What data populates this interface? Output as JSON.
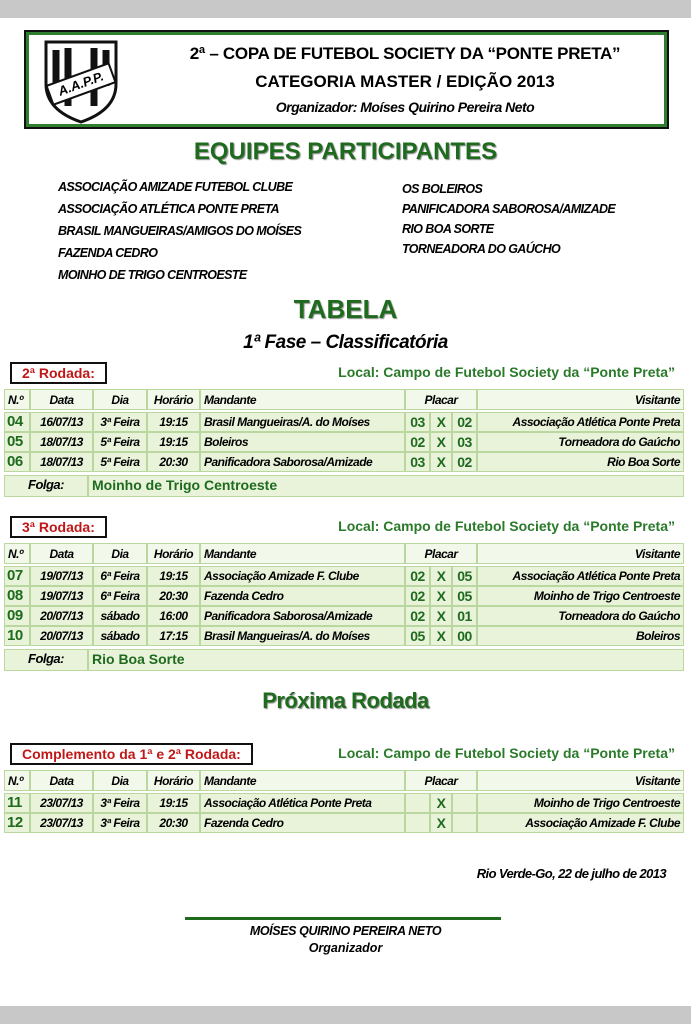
{
  "header": {
    "logo": "A.A.P.P.",
    "title": "2ª – COPA DE FUTEBOL SOCIETY DA “PONTE PRETA”",
    "subtitle": "CATEGORIA MASTER / EDIÇÃO 2013",
    "organizer": "Organizador: Moíses Quirino Pereira Neto"
  },
  "teams": {
    "title": "EQUIPES PARTICIPANTES",
    "left": [
      "ASSOCIAÇÃO AMIZADE FUTEBOL CLUBE",
      "ASSOCIAÇÃO ATLÉTICA PONTE PRETA",
      "BRASIL MANGUEIRAS/AMIGOS DO MOÍSES",
      "FAZENDA CEDRO",
      "MOINHO DE TRIGO CENTROESTE"
    ],
    "right": [
      "OS BOLEIROS",
      "PANIFICADORA SABOROSA/AMIZADE",
      "RIO BOA SORTE",
      "TORNEADORA DO GAÚCHO"
    ]
  },
  "table_title": "TABELA",
  "phase": "1ª Fase – Classificatória",
  "next_title": "Próxima Rodada",
  "rounds": [
    {
      "label": "2ª Rodada:",
      "location": "Local: Campo de Futebol Society da “Ponte Preta”",
      "headers": [
        "N.º",
        "Data",
        "Dia",
        "Horário",
        "Mandante",
        "Placar",
        "Visitante"
      ],
      "games": [
        {
          "no": "04",
          "date": "16/07/13",
          "day": "3ª Feira",
          "time": "19:15",
          "home": "Brasil Mangueiras/A. do Moíses",
          "score_home": "03",
          "vs": "X",
          "score_away": "02",
          "away": "Associação Atlética Ponte Preta"
        },
        {
          "no": "05",
          "date": "18/07/13",
          "day": "5ª Feira",
          "time": "19:15",
          "home": "Boleiros",
          "score_home": "02",
          "vs": "X",
          "score_away": "03",
          "away": "Torneadora do Gaúcho"
        },
        {
          "no": "06",
          "date": "18/07/13",
          "day": "5ª Feira",
          "time": "20:30",
          "home": "Panificadora Saborosa/Amizade",
          "score_home": "03",
          "vs": "X",
          "score_away": "02",
          "away": "Rio Boa Sorte"
        }
      ],
      "folga_label": "Folga:",
      "folga": "Moinho de Trigo Centroeste"
    },
    {
      "label": "3ª Rodada:",
      "location": "Local: Campo de Futebol Society da “Ponte Preta”",
      "headers": [
        "N.º",
        "Data",
        "Dia",
        "Horário",
        "Mandante",
        "Placar",
        "Visitante"
      ],
      "games": [
        {
          "no": "07",
          "date": "19/07/13",
          "day": "6ª Feira",
          "time": "19:15",
          "home": "Associação Amizade F. Clube",
          "score_home": "02",
          "vs": "X",
          "score_away": "05",
          "away": "Associação Atlética Ponte Preta"
        },
        {
          "no": "08",
          "date": "19/07/13",
          "day": "6ª Feira",
          "time": "20:30",
          "home": "Fazenda Cedro",
          "score_home": "02",
          "vs": "X",
          "score_away": "05",
          "away": "Moinho de Trigo Centroeste"
        },
        {
          "no": "09",
          "date": "20/07/13",
          "day": "sábado",
          "time": "16:00",
          "home": "Panificadora Saborosa/Amizade",
          "score_home": "02",
          "vs": "X",
          "score_away": "01",
          "away": "Torneadora do Gaúcho"
        },
        {
          "no": "10",
          "date": "20/07/13",
          "day": "sábado",
          "time": "17:15",
          "home": "Brasil Mangueiras/A. do Moíses",
          "score_home": "05",
          "vs": "X",
          "score_away": "00",
          "away": "Boleiros"
        }
      ],
      "folga_label": "Folga:",
      "folga": "Rio Boa Sorte"
    },
    {
      "label": "Complemento da 1ª e 2ª Rodada:",
      "location": "Local: Campo de Futebol Society da “Ponte Preta”",
      "headers": [
        "N.º",
        "Data",
        "Dia",
        "Horário",
        "Mandante",
        "Placar",
        "Visitante"
      ],
      "games": [
        {
          "no": "11",
          "date": "23/07/13",
          "day": "3ª Feira",
          "time": "19:15",
          "home": "Associação Atlética Ponte Preta",
          "vs": "X",
          "away": "Moinho de Trigo Centroeste"
        },
        {
          "no": "12",
          "date": "23/07/13",
          "day": "3ª Feira",
          "time": "20:30",
          "home": "Fazenda Cedro",
          "vs": "X",
          "away": "Associação Amizade F. Clube"
        }
      ]
    }
  ],
  "footer": {
    "place_date": "Rio Verde-Go, 22 de julho de 2013",
    "name": "MOÍSES QUIRINO PEREIRA NETO",
    "role": "Organizador"
  }
}
